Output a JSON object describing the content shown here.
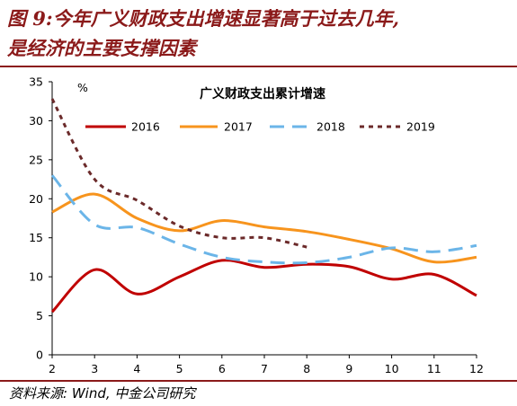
{
  "figure": {
    "title": "图 9:今年广义财政支出增速显著高于过去几年,是经济的主要支撑因素",
    "title_line1": "图 9:今年广义财政支出增速显著高于过去几年,",
    "title_line2": "是经济的主要支撑因素",
    "source": "资料来源: Wind, 中金公司研究"
  },
  "colors": {
    "accent": "#8b1a1a",
    "s2016": "#c00000",
    "s2017": "#f7941d",
    "s2018": "#6bb5e8",
    "s2019": "#6b2a2a"
  },
  "chart_data": {
    "type": "line",
    "title": "广义财政支出累计增速",
    "ylabel_unit": "%",
    "xlabel": "",
    "x": [
      2,
      3,
      4,
      5,
      6,
      7,
      8,
      9,
      10,
      11,
      12
    ],
    "xticks": [
      "2",
      "3",
      "4",
      "5",
      "6",
      "7",
      "8",
      "9",
      "10",
      "11",
      "12"
    ],
    "ylim": [
      0,
      35
    ],
    "yticks": [
      "0",
      "5",
      "10",
      "15",
      "20",
      "25",
      "30",
      "35"
    ],
    "grid": false,
    "legend": "top, single row",
    "series": [
      {
        "name": "2016",
        "style": "solid",
        "color": "#c00000",
        "x": [
          2,
          3,
          4,
          5,
          6,
          7,
          8,
          9,
          10,
          11,
          12
        ],
        "values": [
          5.5,
          10.9,
          7.8,
          10.0,
          12.1,
          11.2,
          11.6,
          11.3,
          9.7,
          10.3,
          7.6
        ]
      },
      {
        "name": "2017",
        "style": "solid",
        "color": "#f7941d",
        "x": [
          2,
          3,
          4,
          5,
          6,
          7,
          8,
          9,
          10,
          11,
          12
        ],
        "values": [
          18.3,
          20.6,
          17.5,
          15.9,
          17.2,
          16.4,
          15.8,
          14.8,
          13.6,
          11.9,
          12.5
        ]
      },
      {
        "name": "2018",
        "style": "dashed",
        "color": "#6bb5e8",
        "x": [
          2,
          3,
          4,
          5,
          6,
          7,
          8,
          9,
          10,
          11,
          12
        ],
        "values": [
          23.0,
          16.7,
          16.3,
          14.2,
          12.5,
          11.9,
          11.8,
          12.5,
          13.7,
          13.2,
          14.0
        ]
      },
      {
        "name": "2019",
        "style": "dotted",
        "color": "#6b2a2a",
        "x": [
          2,
          3,
          4,
          5,
          6,
          7,
          8
        ],
        "values": [
          32.8,
          22.5,
          19.8,
          16.5,
          15.0,
          15.0,
          13.8
        ]
      }
    ]
  }
}
